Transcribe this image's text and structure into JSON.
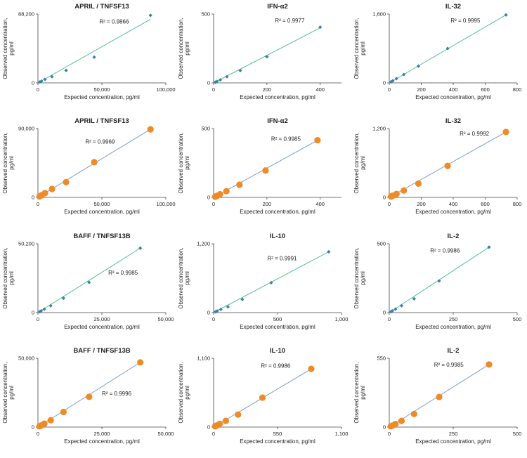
{
  "colors": {
    "blue_marker": "#3a7fa8",
    "blue_line": "#7a9ccd",
    "green_line": "#4fc08d",
    "orange_marker": "#f08a24",
    "axis": "#444444"
  },
  "chart_data": [
    {
      "type": "scatter",
      "title": "APRIL / TNFSF13",
      "xlabel": "Expected concentration, pg/ml",
      "ylabel": [
        "Observed concentration,",
        "pg/ml"
      ],
      "xticks": [
        "0",
        "50,000",
        "100,000"
      ],
      "xtick_values": [
        0,
        50000,
        100000
      ],
      "xlim": [
        0,
        100000
      ],
      "yticks": [
        "0",
        "88,200"
      ],
      "ytick_values": [
        0,
        88200
      ],
      "ylim": [
        0,
        88200
      ],
      "r2": "R² = 0.9866",
      "marker": "diamond",
      "line_color": "green",
      "x": [
        88000,
        44000,
        22000,
        11000,
        5500,
        2750,
        1375
      ],
      "y": [
        86500,
        33000,
        16000,
        8000,
        4500,
        2200,
        1200
      ],
      "fit": [
        [
          0,
          0
        ],
        [
          88000,
          81500
        ]
      ]
    },
    {
      "type": "scatter",
      "title": "IFN-α2",
      "xlabel": "Expected concentration, pg/ml",
      "ylabel": [
        "Observed concentration,",
        "pg/ml"
      ],
      "xticks": [
        "0",
        "200",
        "400"
      ],
      "xtick_values": [
        0,
        200,
        400
      ],
      "xlim": [
        0,
        480
      ],
      "yticks": [
        "0",
        "500"
      ],
      "ytick_values": [
        0,
        500
      ],
      "ylim": [
        0,
        500
      ],
      "r2": "R² = 0.9977",
      "marker": "diamond",
      "line_color": "green",
      "x": [
        400,
        200,
        100,
        50,
        25,
        12.5,
        6.25
      ],
      "y": [
        405,
        190,
        90,
        45,
        22,
        11,
        5
      ],
      "fit": [
        [
          0,
          0
        ],
        [
          400,
          400
        ]
      ]
    },
    {
      "type": "scatter",
      "title": "IL-32",
      "xlabel": "Expected concentration, pg/ml",
      "ylabel": [
        "Observed concentration,",
        "pg/ml"
      ],
      "xticks": [
        "0",
        "200",
        "400",
        "600",
        "800"
      ],
      "xtick_values": [
        0,
        200,
        400,
        600,
        800
      ],
      "xlim": [
        0,
        800
      ],
      "yticks": [
        "0",
        "1,600"
      ],
      "ytick_values": [
        0,
        1600
      ],
      "ylim": [
        0,
        1600
      ],
      "r2": "R² = 0.9995",
      "marker": "diamond",
      "line_color": "green",
      "x": [
        730,
        365,
        182,
        91,
        45,
        22,
        11
      ],
      "y": [
        1580,
        800,
        390,
        195,
        100,
        50,
        25
      ],
      "fit": [
        [
          0,
          0
        ],
        [
          730,
          1580
        ]
      ]
    },
    {
      "type": "scatter",
      "title": "APRIL / TNFSF13",
      "xlabel": "Expected concentration, pg/ml",
      "ylabel": [
        "Observed concentration,",
        "pg/ml"
      ],
      "xticks": [
        "0",
        "50,000",
        "100,000"
      ],
      "xtick_values": [
        0,
        50000,
        100000
      ],
      "xlim": [
        0,
        100000
      ],
      "yticks": [
        "0",
        "90,000"
      ],
      "ytick_values": [
        0,
        90000
      ],
      "ylim": [
        0,
        90000
      ],
      "r2": "R² = 0.9969",
      "marker": "circle",
      "line_color": "blue",
      "x": [
        88000,
        44000,
        22000,
        11000,
        5500,
        2750,
        1375
      ],
      "y": [
        89000,
        46000,
        20000,
        11000,
        5500,
        2800,
        1400
      ],
      "fit": [
        [
          0,
          0
        ],
        [
          88000,
          89000
        ]
      ]
    },
    {
      "type": "scatter",
      "title": "IFN-α2",
      "xlabel": "Expected concentration, pg/ml",
      "ylabel": [
        "Observed concentration,",
        "pg/ml"
      ],
      "xticks": [
        "0",
        "200",
        "400"
      ],
      "xtick_values": [
        0,
        200,
        400
      ],
      "xlim": [
        0,
        480
      ],
      "yticks": [
        "0",
        "500"
      ],
      "ytick_values": [
        0,
        500
      ],
      "ylim": [
        0,
        500
      ],
      "r2": "R² = 0.9985",
      "marker": "circle",
      "line_color": "blue",
      "x": [
        390,
        195,
        97,
        48,
        24,
        12,
        6
      ],
      "y": [
        415,
        195,
        92,
        45,
        23,
        11,
        5
      ],
      "fit": [
        [
          0,
          0
        ],
        [
          390,
          415
        ]
      ]
    },
    {
      "type": "scatter",
      "title": "IL-32",
      "xlabel": "Expected concentration, pg/ml",
      "ylabel": [
        "Observed concentration,",
        "pg/ml"
      ],
      "xticks": [
        "0",
        "200",
        "400",
        "600",
        "800"
      ],
      "xtick_values": [
        0,
        200,
        400,
        600,
        800
      ],
      "xlim": [
        0,
        800
      ],
      "yticks": [
        "0",
        "1,200"
      ],
      "ytick_values": [
        0,
        1200
      ],
      "ylim": [
        0,
        1200
      ],
      "r2": "R² = 0.9992",
      "marker": "circle",
      "line_color": "blue",
      "x": [
        730,
        365,
        182,
        91,
        45,
        22,
        11
      ],
      "y": [
        1140,
        550,
        240,
        120,
        60,
        30,
        15
      ],
      "fit": [
        [
          0,
          0
        ],
        [
          730,
          1140
        ]
      ]
    },
    {
      "type": "scatter",
      "title": "BAFF / TNFSF13B",
      "xlabel": "Expected concentration, pg/ml",
      "ylabel": [
        "Observed concentration,",
        "pg/ml"
      ],
      "xticks": [
        "0",
        "25,000",
        "50,000"
      ],
      "xtick_values": [
        0,
        25000,
        50000
      ],
      "xlim": [
        0,
        50000
      ],
      "yticks": [
        "0",
        "50,200"
      ],
      "ytick_values": [
        0,
        50200
      ],
      "ylim": [
        0,
        50200
      ],
      "r2": "R² = 0.9985",
      "marker": "diamond",
      "line_color": "green",
      "x": [
        40000,
        20000,
        10000,
        5000,
        2500,
        1250,
        625
      ],
      "y": [
        47000,
        22000,
        10500,
        5000,
        2500,
        1200,
        600
      ],
      "fit": [
        [
          0,
          0
        ],
        [
          40000,
          47000
        ]
      ]
    },
    {
      "type": "scatter",
      "title": "IL-10",
      "xlabel": "Expected concentration, pg/ml",
      "ylabel": [
        "Observed concentration,",
        "pg/ml"
      ],
      "xticks": [
        "0",
        "500",
        "1,000"
      ],
      "xtick_values": [
        0,
        500,
        1000
      ],
      "xlim": [
        0,
        1000
      ],
      "yticks": [
        "0",
        "1,200"
      ],
      "ytick_values": [
        0,
        1200
      ],
      "ylim": [
        0,
        1200
      ],
      "r2": "R² = 0.9991",
      "marker": "diamond",
      "line_color": "green",
      "x": [
        900,
        450,
        225,
        112,
        56,
        28,
        14
      ],
      "y": [
        1060,
        520,
        230,
        100,
        55,
        28,
        14
      ],
      "fit": [
        [
          0,
          0
        ],
        [
          900,
          1060
        ]
      ]
    },
    {
      "type": "scatter",
      "title": "IL-2",
      "xlabel": "Expected concentration, pg/ml",
      "ylabel": [
        "Observed concentration,",
        "pg/ml"
      ],
      "xticks": [
        "0",
        "250",
        "500"
      ],
      "xtick_values": [
        0,
        250,
        500
      ],
      "xlim": [
        0,
        500
      ],
      "yticks": [
        "0",
        "500"
      ],
      "ytick_values": [
        0,
        500
      ],
      "ylim": [
        0,
        500
      ],
      "r2": "R² = 0.9986",
      "marker": "diamond",
      "line_color": "green",
      "x": [
        390,
        195,
        97,
        48,
        24,
        12,
        6
      ],
      "y": [
        475,
        230,
        100,
        50,
        25,
        12,
        6
      ],
      "fit": [
        [
          0,
          0
        ],
        [
          390,
          475
        ]
      ]
    },
    {
      "type": "scatter",
      "title": "BAFF / TNFSF13B",
      "xlabel": "Expected concentration, pg/ml",
      "ylabel": [
        "Observed concentration,",
        "pg/ml"
      ],
      "xticks": [
        "0",
        "25,000",
        "50,000"
      ],
      "xtick_values": [
        0,
        25000,
        50000
      ],
      "xlim": [
        0,
        50000
      ],
      "yticks": [
        "0",
        "50,000"
      ],
      "ytick_values": [
        0,
        50000
      ],
      "ylim": [
        0,
        50000
      ],
      "r2": "R² = 0.9996",
      "marker": "circle",
      "line_color": "blue",
      "x": [
        40000,
        20000,
        10000,
        5000,
        2500,
        1250,
        625
      ],
      "y": [
        47000,
        22000,
        11000,
        5000,
        2500,
        1200,
        600
      ],
      "fit": [
        [
          0,
          0
        ],
        [
          40000,
          47000
        ]
      ]
    },
    {
      "type": "scatter",
      "title": "IL-10",
      "xlabel": "Expected concentration, pg/ml",
      "ylabel": [
        "Observed concentration,",
        "pg/ml"
      ],
      "xticks": [
        "0",
        "550",
        "1,100"
      ],
      "xtick_values": [
        0,
        550,
        1100
      ],
      "xlim": [
        0,
        1100
      ],
      "yticks": [
        "0",
        "1,100"
      ],
      "ytick_values": [
        0,
        1100
      ],
      "ylim": [
        0,
        1100
      ],
      "r2": "R² = 0.9986",
      "marker": "circle",
      "line_color": "blue",
      "x": [
        840,
        420,
        210,
        105,
        52,
        26,
        13
      ],
      "y": [
        930,
        470,
        200,
        100,
        52,
        26,
        13
      ],
      "fit": [
        [
          0,
          0
        ],
        [
          840,
          930
        ]
      ]
    },
    {
      "type": "scatter",
      "title": "IL-2",
      "xlabel": "Expected concentration, pg/ml",
      "ylabel": [
        "Observed concentration,",
        "pg/ml"
      ],
      "xticks": [
        "0",
        "250",
        "500"
      ],
      "xtick_values": [
        0,
        250,
        500
      ],
      "xlim": [
        0,
        500
      ],
      "yticks": [
        "0",
        "550"
      ],
      "ytick_values": [
        0,
        550
      ],
      "ylim": [
        0,
        550
      ],
      "r2": "R² = 0.9985",
      "marker": "circle",
      "line_color": "blue",
      "x": [
        390,
        195,
        97,
        48,
        24,
        12,
        6
      ],
      "y": [
        500,
        240,
        105,
        50,
        25,
        12,
        6
      ],
      "fit": [
        [
          0,
          0
        ],
        [
          390,
          500
        ]
      ]
    }
  ]
}
